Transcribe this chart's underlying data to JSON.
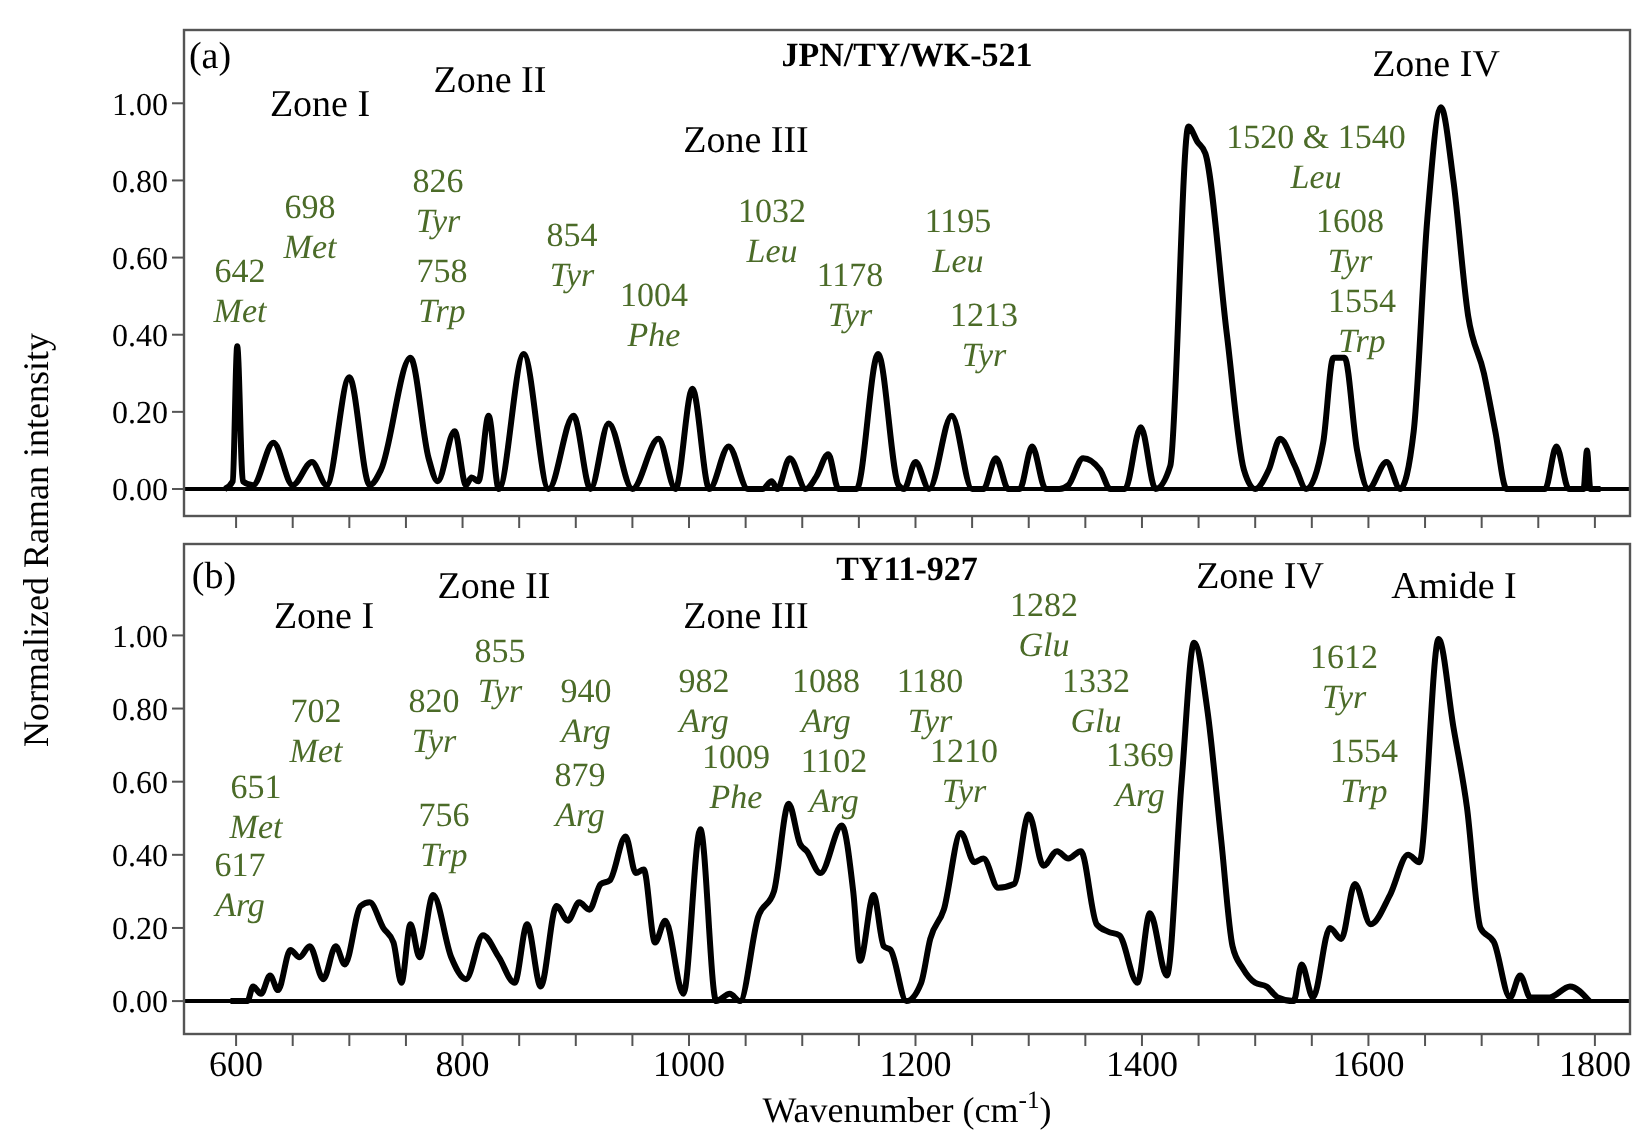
{
  "chart_data": [
    {
      "type": "line",
      "title": "JPN/TY/WK-521",
      "ylabel": "Normalized Raman intensity",
      "color": "#000000",
      "line_style": "solid",
      "marker": "none",
      "tick_labels": "y",
      "xlim": [
        554,
        1831
      ],
      "xticks": [
        {
          "value": 600,
          "label": null
        },
        {
          "value": 650,
          "label": null
        },
        {
          "value": 700,
          "label": null
        },
        {
          "value": 750,
          "label": null
        },
        {
          "value": 800,
          "label": null
        },
        {
          "value": 850,
          "label": null
        },
        {
          "value": 900,
          "label": null
        },
        {
          "value": 950,
          "label": null
        },
        {
          "value": 1000,
          "label": null
        },
        {
          "value": 1050,
          "label": null
        },
        {
          "value": 1100,
          "label": null
        },
        {
          "value": 1150,
          "label": null
        },
        {
          "value": 1200,
          "label": null
        },
        {
          "value": 1250,
          "label": null
        },
        {
          "value": 1300,
          "label": null
        },
        {
          "value": 1350,
          "label": null
        },
        {
          "value": 1400,
          "label": null
        },
        {
          "value": 1450,
          "label": null
        },
        {
          "value": 1500,
          "label": null
        },
        {
          "value": 1550,
          "label": null
        },
        {
          "value": 1600,
          "label": null
        },
        {
          "value": 1650,
          "label": null
        },
        {
          "value": 1700,
          "label": null
        },
        {
          "value": 1750,
          "label": null
        },
        {
          "value": 1800,
          "label": null
        }
      ],
      "ylim": [
        -0.07,
        1.19
      ],
      "yticks": [
        {
          "value": 0,
          "label": "0.00"
        },
        {
          "value": 0.2,
          "label": "0.20"
        },
        {
          "value": 0.4,
          "label": "0.40"
        },
        {
          "value": 0.6,
          "label": "0.60"
        },
        {
          "value": 0.8,
          "label": "0.80"
        },
        {
          "value": 1,
          "label": "1.00"
        }
      ],
      "ref_lines": [
        {
          "axis": "y",
          "value": 0,
          "color": "#000000"
        }
      ],
      "x": [
        590,
        597,
        601,
        606,
        615,
        633,
        650,
        667,
        680,
        700,
        718,
        728,
        754,
        770,
        778,
        793,
        803,
        808,
        814,
        823,
        832,
        854,
        876,
        898,
        913,
        929,
        950,
        973,
        988,
        1003,
        1018,
        1035,
        1052,
        1065,
        1073,
        1078,
        1089,
        1103,
        1112,
        1123,
        1132,
        1148,
        1167,
        1185,
        1190,
        1200,
        1212,
        1232,
        1250,
        1260,
        1271,
        1282,
        1292,
        1303,
        1315,
        1327,
        1335,
        1348,
        1363,
        1372,
        1385,
        1399,
        1412,
        1425,
        1441,
        1449,
        1456,
        1475,
        1490,
        1500,
        1512,
        1522,
        1535,
        1545,
        1560,
        1569,
        1579,
        1590,
        1600,
        1616,
        1628,
        1640,
        1652,
        1664,
        1675,
        1688,
        1702,
        1712,
        1722,
        1745,
        1756,
        1766,
        1777,
        1790,
        1793,
        1796,
        1805
      ],
      "values": [
        0,
        0.02,
        0.37,
        0.02,
        0.01,
        0.12,
        0.01,
        0.07,
        0.01,
        0.29,
        0.01,
        0.05,
        0.34,
        0.08,
        0.02,
        0.15,
        0.01,
        0.03,
        0.02,
        0.19,
        0,
        0.35,
        0,
        0.19,
        0,
        0.17,
        0,
        0.13,
        0,
        0.26,
        0,
        0.11,
        0,
        0,
        0.02,
        0,
        0.08,
        0,
        0.03,
        0.09,
        0,
        0,
        0.35,
        0.01,
        0,
        0.07,
        0,
        0.19,
        0,
        0,
        0.08,
        0,
        0,
        0.11,
        0,
        0,
        0.01,
        0.08,
        0.05,
        0,
        0,
        0.16,
        0,
        0.06,
        0.94,
        0.9,
        0.87,
        0.4,
        0.05,
        0,
        0.05,
        0.13,
        0.06,
        0,
        0.12,
        0.34,
        0.34,
        0.1,
        0,
        0.07,
        0,
        0.15,
        0.7,
        0.99,
        0.8,
        0.45,
        0.3,
        0.15,
        0,
        0,
        0,
        0.11,
        0,
        0,
        0.1,
        0,
        0
      ],
      "annotations": [
        "(a)",
        "Zone I",
        "Zone II",
        "Zone III",
        "Zone IV",
        "642\nMet",
        "698\nMet",
        "826\nTyr",
        "758\nTrp",
        "854\nTyr",
        "1004\nPhe",
        "1032\nLeu",
        "1178\nTyr",
        "1195\nLeu",
        "1213\nTyr",
        "1520 & 1540\nLeu",
        "1608\nTyr",
        "1554\nTrp"
      ]
    },
    {
      "type": "line",
      "title": "TY11-927",
      "xlabel": "Wavenumber (cm$^{-1}$)",
      "color": "#000000",
      "line_style": "solid",
      "marker": "none",
      "xlim": [
        554,
        1831
      ],
      "xticks": [
        {
          "value": 600,
          "label": "600"
        },
        {
          "value": 650,
          "label": null
        },
        {
          "value": 700,
          "label": null
        },
        {
          "value": 750,
          "label": null
        },
        {
          "value": 800,
          "label": "800"
        },
        {
          "value": 850,
          "label": null
        },
        {
          "value": 900,
          "label": null
        },
        {
          "value": 950,
          "label": null
        },
        {
          "value": 1000,
          "label": "1000"
        },
        {
          "value": 1050,
          "label": null
        },
        {
          "value": 1100,
          "label": null
        },
        {
          "value": 1150,
          "label": null
        },
        {
          "value": 1200,
          "label": "1200"
        },
        {
          "value": 1250,
          "label": null
        },
        {
          "value": 1300,
          "label": null
        },
        {
          "value": 1350,
          "label": null
        },
        {
          "value": 1400,
          "label": "1400"
        },
        {
          "value": 1450,
          "label": null
        },
        {
          "value": 1500,
          "label": null
        },
        {
          "value": 1550,
          "label": null
        },
        {
          "value": 1600,
          "label": "1600"
        },
        {
          "value": 1650,
          "label": null
        },
        {
          "value": 1700,
          "label": null
        },
        {
          "value": 1750,
          "label": null
        },
        {
          "value": 1800,
          "label": "1800"
        }
      ],
      "ylim": [
        -0.09,
        1.25
      ],
      "yticks": [
        {
          "value": 0,
          "label": "0.00"
        },
        {
          "value": 0.2,
          "label": "0.20"
        },
        {
          "value": 0.4,
          "label": "0.40"
        },
        {
          "value": 0.6,
          "label": "0.60"
        },
        {
          "value": 0.8,
          "label": "0.80"
        },
        {
          "value": 1,
          "label": "1.00"
        }
      ],
      "ref_lines": [
        {
          "axis": "y",
          "value": 0,
          "color": "#000000"
        }
      ],
      "x": [
        595,
        610,
        615,
        622,
        630,
        637,
        648,
        656,
        665,
        677,
        688,
        696,
        710,
        718,
        730,
        739,
        746,
        754,
        762,
        774,
        790,
        803,
        818,
        832,
        846,
        857,
        869,
        883,
        893,
        903,
        912,
        922,
        930,
        944,
        953,
        960,
        970,
        979,
        995,
        1010,
        1024,
        1036,
        1045,
        1061,
        1075,
        1088,
        1098,
        1104,
        1116,
        1135,
        1145,
        1151,
        1163,
        1172,
        1178,
        1192,
        1205,
        1213,
        1225,
        1240,
        1252,
        1260,
        1273,
        1287,
        1300,
        1313,
        1325,
        1335,
        1346,
        1360,
        1370,
        1380,
        1396,
        1407,
        1422,
        1435,
        1446,
        1458,
        1470,
        1480,
        1489,
        1500,
        1510,
        1520,
        1534,
        1541,
        1551,
        1566,
        1576,
        1588,
        1602,
        1619,
        1635,
        1645,
        1662,
        1675,
        1687,
        1699,
        1711,
        1725,
        1734,
        1743,
        1760,
        1778,
        1795
      ],
      "values": [
        0,
        0,
        0.04,
        0.02,
        0.07,
        0.03,
        0.14,
        0.12,
        0.15,
        0.06,
        0.15,
        0.1,
        0.26,
        0.27,
        0.2,
        0.16,
        0.05,
        0.21,
        0.12,
        0.29,
        0.12,
        0.06,
        0.18,
        0.12,
        0.05,
        0.21,
        0.04,
        0.26,
        0.22,
        0.27,
        0.25,
        0.32,
        0.33,
        0.45,
        0.35,
        0.36,
        0.16,
        0.22,
        0.02,
        0.47,
        0,
        0.02,
        0,
        0.23,
        0.3,
        0.54,
        0.43,
        0.41,
        0.35,
        0.48,
        0.3,
        0.11,
        0.29,
        0.15,
        0.14,
        0,
        0.05,
        0.17,
        0.25,
        0.46,
        0.38,
        0.39,
        0.31,
        0.32,
        0.51,
        0.37,
        0.41,
        0.39,
        0.41,
        0.21,
        0.19,
        0.18,
        0.05,
        0.24,
        0.07,
        0.6,
        0.98,
        0.79,
        0.44,
        0.15,
        0.09,
        0.05,
        0.04,
        0.01,
        0,
        0.1,
        0.01,
        0.2,
        0.17,
        0.32,
        0.21,
        0.29,
        0.4,
        0.38,
        0.99,
        0.75,
        0.53,
        0.2,
        0.16,
        0.01,
        0.07,
        0.01,
        0.01,
        0.04,
        0
      ],
      "annotations": [
        "(b)",
        "Zone I",
        "Zone II",
        "Zone III",
        "Zone IV",
        "Amide I",
        "617\nArg",
        "651\nMet",
        "702\nMet",
        "820\nTyr",
        "756\nTrp",
        "855\nTyr",
        "940\nArg",
        "879\nArg",
        "982\nArg",
        "1009\nPhe",
        "1088\nArg",
        "1102\nArg",
        "1180\nTyr",
        "1210\nTyr",
        "1282\nGlu",
        "1332\nGlu",
        "1369\nArg",
        "1612\nTyr",
        "1554\nTrp"
      ]
    }
  ]
}
